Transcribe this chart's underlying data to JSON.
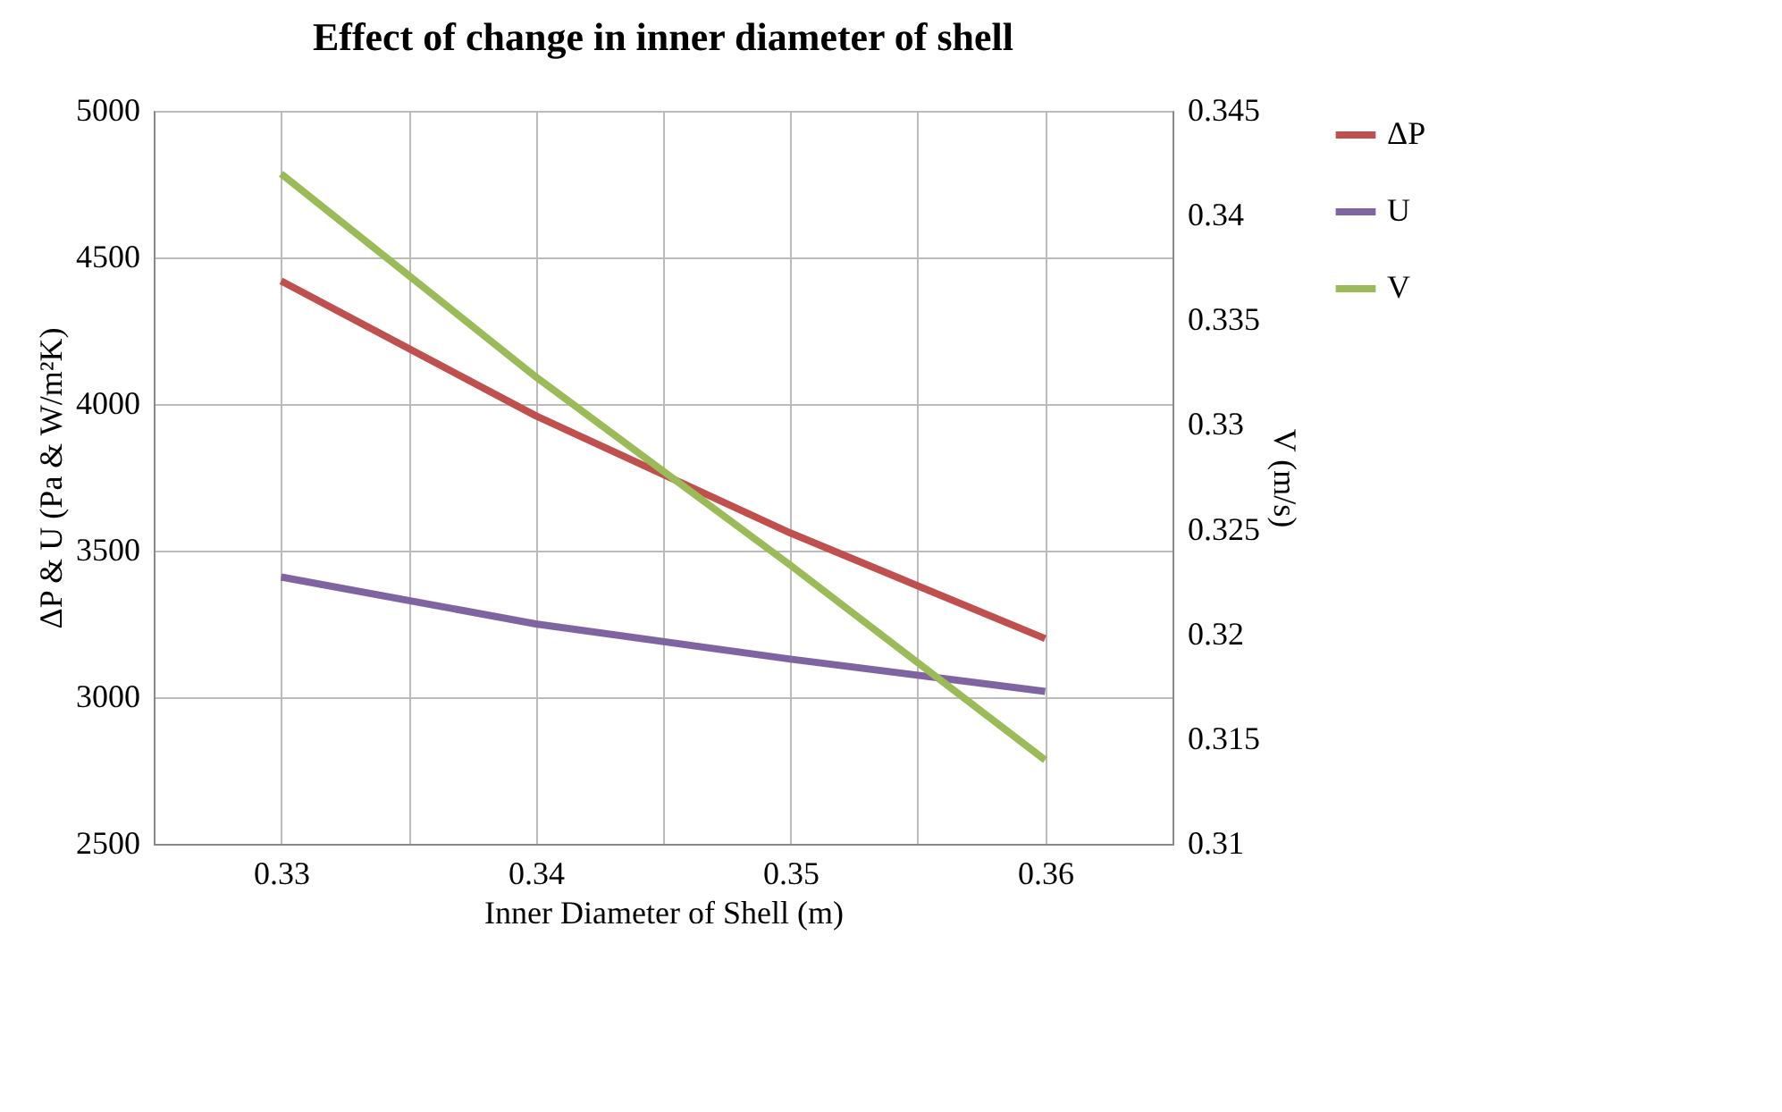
{
  "chart_data": {
    "type": "line",
    "title": "Effect of change in inner diameter of shell",
    "xlabel": "Inner Diameter of Shell (m)",
    "ylabel": "ΔP & U (Pa & W/m²K)",
    "y2label": "V (m/s)",
    "x": [
      0.33,
      0.34,
      0.35,
      0.36
    ],
    "series": [
      {
        "name": "ΔP",
        "color": "#c0504d",
        "values": [
          4420,
          3960,
          3560,
          3200
        ]
      },
      {
        "name": "U",
        "color": "#8064a2",
        "values": [
          3410,
          3250,
          3130,
          3020
        ]
      },
      {
        "name": "V",
        "color": "#9bbb59",
        "axis": "y2",
        "values": [
          0.342,
          0.3323,
          0.3233,
          0.314
        ]
      }
    ],
    "xlim": [
      0.325,
      0.365
    ],
    "xticks": [
      {
        "value": 0.325,
        "label": null
      },
      0.33,
      {
        "value": 0.335,
        "label": null
      },
      0.34,
      {
        "value": 0.345,
        "label": null
      },
      0.35,
      {
        "value": 0.355,
        "label": null
      },
      0.36,
      {
        "value": 0.365,
        "label": null
      }
    ],
    "ylim": [
      2500,
      5000
    ],
    "yticks": [
      2500,
      3000,
      3500,
      4000,
      4500,
      5000
    ],
    "y2lim": [
      0.31,
      0.345
    ],
    "y2ticks": [
      0.31,
      0.315,
      0.32,
      0.325,
      0.33,
      0.335,
      0.34,
      0.345
    ],
    "grid": true,
    "legend": "right",
    "marker": "none",
    "line_style": "solid"
  }
}
